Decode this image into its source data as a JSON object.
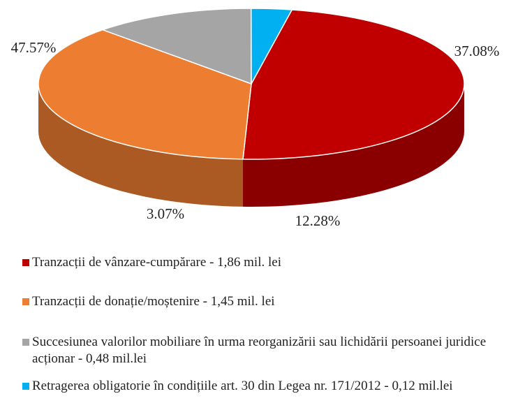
{
  "chart_data": {
    "type": "pie",
    "categories": [
      "Tranzacții de vânzare-cumpărare - 1,86 mil. lei",
      "Tranzacții de donație/moștenire - 1,45 mil. lei",
      "Succesiunea valorilor mobiliare în urma reorganizării sau lichidării persoanei juridice acționar - 0,48 mil.lei",
      "Retragerea obligatorie în condițiile art. 30 din Legea nr. 171/2012 - 0,12 mil.lei"
    ],
    "values": [
      47.57,
      37.08,
      12.28,
      3.07
    ],
    "value_labels": [
      "47.57%",
      "37.08%",
      "12.28%",
      "3.07%"
    ],
    "colors": [
      "#c00000",
      "#ed7d31",
      "#a5a5a5",
      "#00b0f0"
    ],
    "legend": "bottom"
  }
}
